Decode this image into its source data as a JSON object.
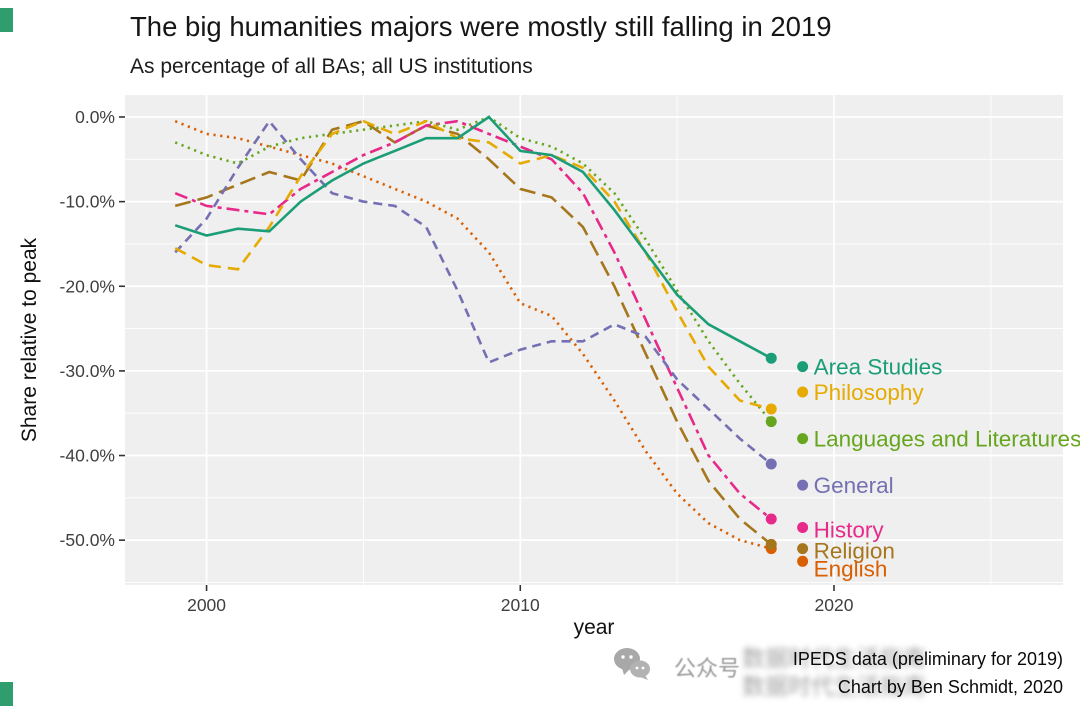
{
  "title": "The big humanities majors were mostly still falling in 2019",
  "subtitle": "As percentage of all BAs; all US institutions",
  "axes": {
    "y_title": "Share relative to peak",
    "x_title": "year"
  },
  "caption": {
    "line1": "IPEDS data (preliminary for 2019)",
    "line2": "Chart by Ben Schmidt, 2020"
  },
  "watermark": {
    "source_label": "公众号",
    "text": "数据时代生活指南"
  },
  "chart_data": {
    "type": "line",
    "title": "The big humanities majors were mostly still falling in 2019",
    "subtitle": "As percentage of all BAs; all US institutions",
    "xlabel": "year",
    "ylabel": "Share relative to peak",
    "xlim": [
      1997.4,
      2027.3
    ],
    "ylim": [
      -55.3,
      2.6
    ],
    "x": [
      1999,
      2000,
      2001,
      2002,
      2003,
      2004,
      2005,
      2006,
      2007,
      2008,
      2009,
      2010,
      2011,
      2012,
      2013,
      2014,
      2015,
      2016,
      2017,
      2018
    ],
    "prelim_x": 2019,
    "x_ticks": [
      {
        "value": 2000,
        "label": "2000"
      },
      {
        "value": 2010,
        "label": "2010"
      },
      {
        "value": 2020,
        "label": "2020"
      }
    ],
    "y_ticks": [
      {
        "value": 0,
        "label": "0.0%"
      },
      {
        "value": -10,
        "label": "-10.0%"
      },
      {
        "value": -20,
        "label": "-20.0%"
      },
      {
        "value": -30,
        "label": "-30.0%"
      },
      {
        "value": -40,
        "label": "-40.0%"
      },
      {
        "value": -50,
        "label": "-50.0%"
      }
    ],
    "x_minor_ticks": [
      2005,
      2015,
      2025
    ],
    "y_minor_ticks": [
      -5,
      -15,
      -25,
      -35,
      -45,
      -55
    ],
    "style": {
      "panel_bg": "#efefef",
      "grid_color": "#ffffff",
      "legend": "labels at right end of lines, final dot is preliminary 2019 value"
    },
    "series": [
      {
        "name": "Area Studies",
        "color": "#1b9e77",
        "linetype": "solid",
        "values": [
          -12.8,
          -14,
          -13.2,
          -13.5,
          -10,
          -7.5,
          -5.5,
          -4,
          -2.5,
          -2.5,
          0,
          -4,
          -4.5,
          -6.5,
          -11,
          -16,
          -21,
          -24.5,
          -26.5,
          -28.5
        ],
        "prelim": -29.5
      },
      {
        "name": "Philosophy",
        "color": "#e6ab02",
        "linetype": "dashed",
        "values": [
          -15.5,
          -17.5,
          -18,
          -13,
          -7,
          -2,
          -0.5,
          -2,
          -0.5,
          -2.5,
          -3,
          -5.5,
          -4.5,
          -6,
          -10,
          -16,
          -23,
          -29.5,
          -33.5,
          -34.5
        ],
        "prelim": -32.5
      },
      {
        "name": "Languages and Literatures",
        "color": "#66a61e",
        "linetype": "dotted",
        "values": [
          -3,
          -4.5,
          -5.5,
          -3.5,
          -2.5,
          -2,
          -1.5,
          -1,
          -0.5,
          -1.5,
          0,
          -2.5,
          -3.5,
          -5.5,
          -9,
          -14.5,
          -20.5,
          -26.5,
          -31.5,
          -36
        ],
        "prelim": -38
      },
      {
        "name": "General",
        "color": "#7570b3",
        "linetype": "mediumdash",
        "values": [
          -16,
          -12,
          -6,
          -0.5,
          -5,
          -9,
          -10,
          -10.5,
          -13,
          -20.5,
          -29,
          -27.5,
          -26.5,
          -26.5,
          -24.5,
          -26,
          -31,
          -34.5,
          -38,
          -41
        ],
        "prelim": -43.5
      },
      {
        "name": "History",
        "color": "#e7298a",
        "linetype": "twodash",
        "values": [
          -9,
          -10.5,
          -11,
          -11.5,
          -8.5,
          -6.5,
          -4.5,
          -3,
          -1,
          -0.5,
          -2,
          -3.5,
          -5,
          -9,
          -16,
          -24,
          -32,
          -40,
          -44.5,
          -47.5
        ],
        "prelim": -48.5
      },
      {
        "name": "Religion",
        "color": "#a6761d",
        "linetype": "longdash",
        "values": [
          -10.5,
          -9.5,
          -8,
          -6.5,
          -7.5,
          -1.5,
          -0.5,
          -3,
          -1,
          -2,
          -5,
          -8.5,
          -9.5,
          -13,
          -20,
          -28,
          -36,
          -43,
          -47.5,
          -50.5
        ],
        "prelim": -51
      },
      {
        "name": "English",
        "color": "#d95f02",
        "linetype": "dotted",
        "values": [
          -0.5,
          -2,
          -2.5,
          -3.5,
          -4.5,
          -5.5,
          -7,
          -8.5,
          -10,
          -12,
          -16,
          -22,
          -23.5,
          -28,
          -33.5,
          -39.5,
          -44.5,
          -48,
          -50,
          -51
        ],
        "prelim": -52.5
      }
    ]
  }
}
